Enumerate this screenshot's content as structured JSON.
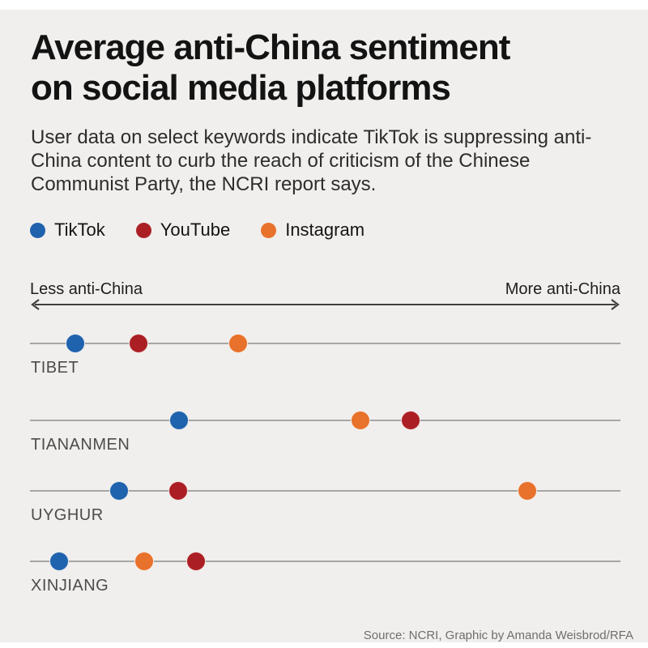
{
  "header": {
    "title_lines": [
      "Average anti-China sentiment",
      "on social media platforms"
    ],
    "subtitle": "User data on select keywords indicate TikTok is suppressing anti-China content to curb the reach of criticism of the Chinese Communist Party, the NCRI report says."
  },
  "axis": {
    "left_label": "Less anti-China",
    "right_label": "More anti-China"
  },
  "chart_data": {
    "type": "scatter",
    "subtype": "dot-plot",
    "title": "Average anti-China sentiment on social media platforms",
    "categories": [
      "TIBET",
      "TIANANMEN",
      "UYGHUR",
      "XINJIANG"
    ],
    "x_axis": {
      "label_left": "Less anti-China",
      "label_right": "More anti-China",
      "scale": "relative position along axis, percent 0-100 (no numeric ticks shown)"
    },
    "legend_position": "top",
    "series": [
      {
        "name": "TikTok",
        "color": "#1f62ad",
        "values_percent": [
          7.7,
          25.2,
          15.1,
          4.9
        ]
      },
      {
        "name": "YouTube",
        "color": "#ab1f24",
        "values_percent": [
          18.4,
          64.5,
          25.1,
          28.1
        ]
      },
      {
        "name": "Instagram",
        "color": "#e8712b",
        "values_percent": [
          35.2,
          56.0,
          84.2,
          19.3
        ]
      }
    ]
  },
  "colors": {
    "card_background": "#f0efed",
    "page_background": "#ffffff",
    "row_line": "#a6a6a4",
    "arrow": "#3f3f3d",
    "title_text": "#131313",
    "category_label_text": "#4c4c4a",
    "source_text": "#6e6e6c"
  },
  "footer": {
    "source": "Source: NCRI, Graphic by Amanda Weisbrod/RFA"
  }
}
